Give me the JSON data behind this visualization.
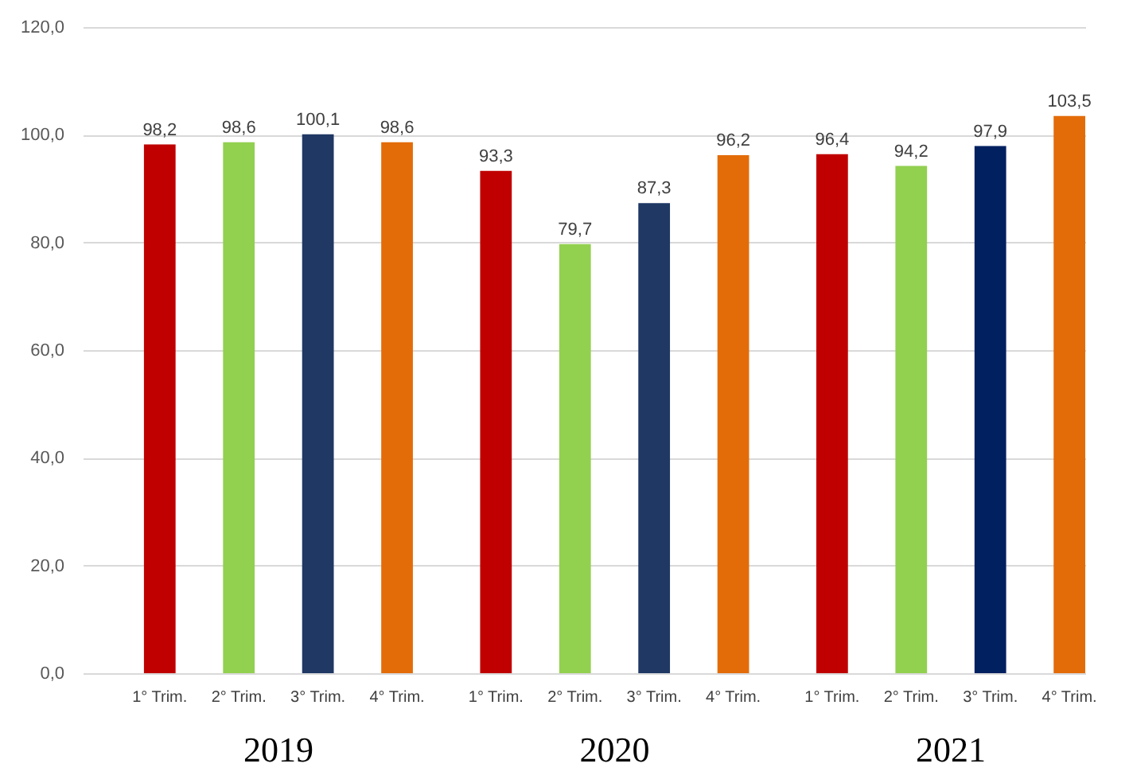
{
  "chart_data": {
    "type": "bar",
    "categories": [
      "2019",
      "2020",
      "2021"
    ],
    "series": [
      {
        "name": "1° Trim.",
        "color": "#c00000",
        "values": [
          98.2,
          93.3,
          96.4
        ],
        "value_labels": [
          "98,2",
          "93,3",
          "96,4"
        ]
      },
      {
        "name": "2° Trim.",
        "color": "#92d050",
        "values": [
          98.6,
          79.7,
          94.2
        ],
        "value_labels": [
          "98,6",
          "79,7",
          "94,2"
        ]
      },
      {
        "name": "3° Trim.",
        "colors": [
          "#1f3864",
          "#1f3864",
          "#002060"
        ],
        "values": [
          100.1,
          87.3,
          97.9
        ],
        "value_labels": [
          "100,1",
          "87,3",
          "97,9"
        ]
      },
      {
        "name": "4° Trim.",
        "color": "#e36c09",
        "values": [
          98.6,
          96.2,
          103.5
        ],
        "value_labels": [
          "98,6",
          "96,2",
          "103,5"
        ]
      }
    ],
    "ylim": [
      0,
      120
    ],
    "yticks": [
      {
        "value": 0,
        "label": "0,0"
      },
      {
        "value": 20,
        "label": "20,0"
      },
      {
        "value": 40,
        "label": "40,0"
      },
      {
        "value": 60,
        "label": "60,0"
      },
      {
        "value": 80,
        "label": "80,0"
      },
      {
        "value": 100,
        "label": "100,0"
      },
      {
        "value": 120,
        "label": "120,0"
      }
    ],
    "grid": "y"
  }
}
